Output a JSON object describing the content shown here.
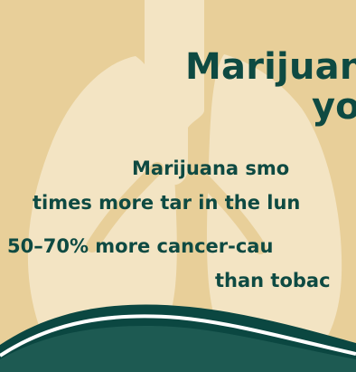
{
  "colors": {
    "background": "#e8cf99",
    "lungs": "#f3e4c3",
    "text": "#0e4a42",
    "wave_dark": "#0b4741",
    "wave_mid": "#1d5a52",
    "wave_light": "#ffffff"
  },
  "headline": {
    "line1": "Marijuan",
    "line2": "yo"
  },
  "body": {
    "line1": "Marijuana smo",
    "line2": "times more tar in the lun",
    "line3": "50–70% more cancer-cau",
    "line4": "than tobac"
  },
  "icons": {
    "background": "lungs-icon"
  }
}
